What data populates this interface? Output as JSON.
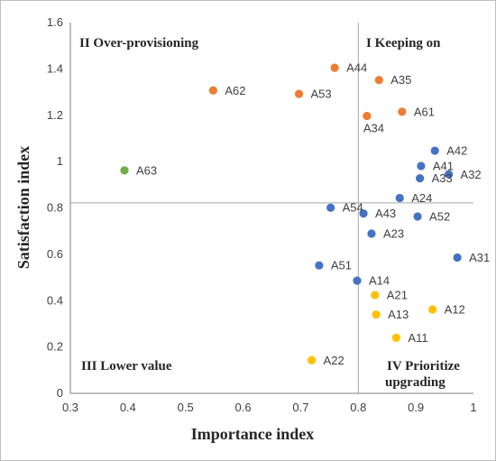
{
  "chart_data": {
    "type": "scatter",
    "xlabel": "Importance index",
    "ylabel": "Satisfaction index",
    "xlim": [
      0.3,
      1.0
    ],
    "ylim": [
      0,
      1.6
    ],
    "x_ticks": [
      "0.3",
      "0.4",
      "0.5",
      "0.6",
      "0.7",
      "0.8",
      "0.9",
      "1"
    ],
    "y_ticks": [
      "0",
      "0.2",
      "0.4",
      "0.6",
      "0.8",
      "1",
      "1.2",
      "1.4",
      "1.6"
    ],
    "grid": false,
    "reference_lines": {
      "x": 0.8,
      "y": 0.822
    },
    "quadrant_labels": {
      "top_left": "II Over-provisioning",
      "top_right": "I Keeping on",
      "bottom_left": "III Lower value",
      "bottom_right_line1": "IV Prioritize",
      "bottom_right_line2": "upgrading"
    },
    "colors": {
      "orange": "#ED7D31",
      "blue": "#4472C4",
      "green": "#70AD47",
      "yellow": "#FFC000"
    },
    "series": [
      {
        "color": "#ED7D31",
        "points": [
          {
            "label": "A44",
            "x": 0.759,
            "y": 1.405
          },
          {
            "label": "A35",
            "x": 0.836,
            "y": 1.352
          },
          {
            "label": "A62",
            "x": 0.548,
            "y": 1.307
          },
          {
            "label": "A53",
            "x": 0.697,
            "y": 1.292
          },
          {
            "label": "A61",
            "x": 0.876,
            "y": 1.215
          },
          {
            "label": "A34",
            "x": 0.815,
            "y": 1.197
          }
        ]
      },
      {
        "color": "#70AD47",
        "points": [
          {
            "label": "A63",
            "x": 0.394,
            "y": 0.962
          }
        ]
      },
      {
        "color": "#4472C4",
        "points": [
          {
            "label": "A42",
            "x": 0.933,
            "y": 1.047
          },
          {
            "label": "A41",
            "x": 0.909,
            "y": 0.981
          },
          {
            "label": "A32",
            "x": 0.957,
            "y": 0.945
          },
          {
            "label": "A33",
            "x": 0.907,
            "y": 0.928
          },
          {
            "label": "A24",
            "x": 0.872,
            "y": 0.843
          },
          {
            "label": "A54",
            "x": 0.752,
            "y": 0.801
          },
          {
            "label": "A43",
            "x": 0.809,
            "y": 0.776
          },
          {
            "label": "A52",
            "x": 0.903,
            "y": 0.763
          },
          {
            "label": "A23",
            "x": 0.823,
            "y": 0.689
          },
          {
            "label": "A31",
            "x": 0.972,
            "y": 0.586
          },
          {
            "label": "A51",
            "x": 0.732,
            "y": 0.552
          },
          {
            "label": "A14",
            "x": 0.798,
            "y": 0.486
          }
        ]
      },
      {
        "color": "#FFC000",
        "points": [
          {
            "label": "A21",
            "x": 0.829,
            "y": 0.424
          },
          {
            "label": "A12",
            "x": 0.929,
            "y": 0.362
          },
          {
            "label": "A13",
            "x": 0.831,
            "y": 0.34
          },
          {
            "label": "A11",
            "x": 0.866,
            "y": 0.24
          },
          {
            "label": "A22",
            "x": 0.719,
            "y": 0.143
          }
        ]
      }
    ]
  }
}
